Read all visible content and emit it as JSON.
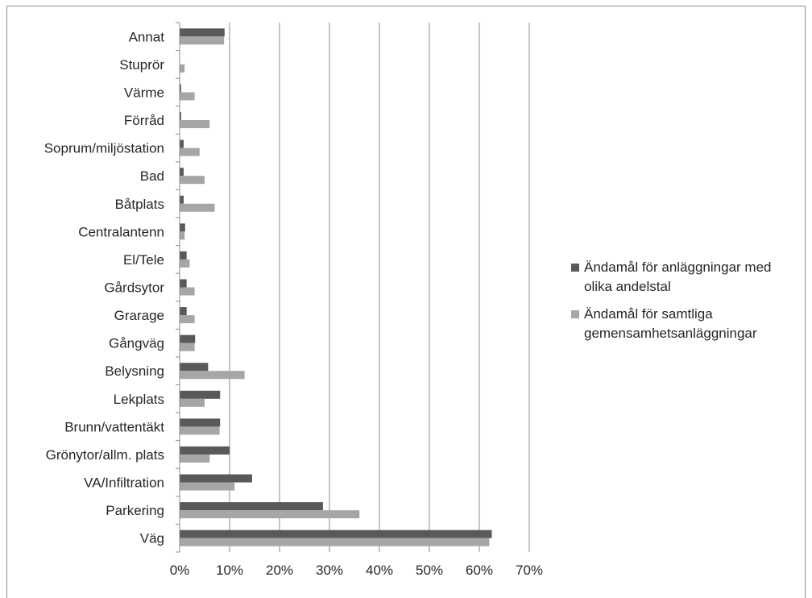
{
  "chart_data": {
    "type": "bar",
    "orientation": "horizontal",
    "categories": [
      "Annat",
      "Stuprör",
      "Värme",
      "Förråd",
      "Soprum/miljöstation",
      "Bad",
      "Båtplats",
      "Centralantenn",
      "El/Tele",
      "Gårdsytor",
      "Grarage",
      "Gångväg",
      "Belysning",
      "Lekplats",
      "Brunn/vattentäkt",
      "Grönytor/allm. plats",
      "VA/Infiltration",
      "Parkering",
      "Väg"
    ],
    "series": [
      {
        "name": "Ändamål för anläggningar med olika andelstal",
        "color": "#595959",
        "values": [
          9,
          0,
          0.3,
          0.3,
          0.8,
          0.8,
          0.8,
          1.1,
          1.4,
          1.4,
          1.4,
          3.1,
          5.7,
          8.1,
          8.1,
          10,
          14.5,
          28.7,
          62.5
        ]
      },
      {
        "name": "Ändamål för samtliga gemensamhetsanläggningar",
        "color": "#a6a6a6",
        "values": [
          8.9,
          1,
          3,
          6,
          4,
          5,
          7,
          1,
          2,
          3,
          3,
          3,
          13,
          5,
          8,
          6,
          11,
          36,
          62
        ]
      }
    ],
    "xlim": [
      0,
      70
    ],
    "ticks": [
      0,
      10,
      20,
      30,
      40,
      50,
      60,
      70
    ],
    "tick_labels": [
      "0%",
      "10%",
      "20%",
      "30%",
      "40%",
      "50%",
      "60%",
      "70%"
    ],
    "grid": true,
    "legend_position": "right"
  },
  "legend": [
    {
      "line1": "Ändamål för anläggningar med",
      "line2": "olika andelstal",
      "color": "#595959"
    },
    {
      "line1": "Ändamål för samtliga",
      "line2": "gemensamhetsanläggningar",
      "color": "#a6a6a6"
    }
  ]
}
